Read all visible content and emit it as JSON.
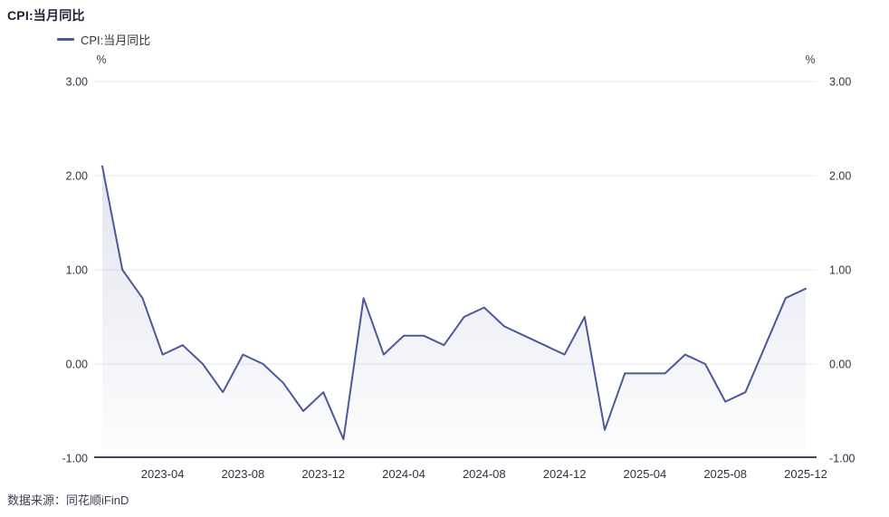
{
  "page": {
    "title": "CPI:当月同比",
    "source_note": "数据来源：同花顺iFinD"
  },
  "legend": {
    "series_label": "CPI:当月同比"
  },
  "chart_data": {
    "type": "area",
    "title": "CPI:当月同比",
    "series_name": "CPI:当月同比",
    "unit": "%",
    "x": [
      "2023-01",
      "2023-02",
      "2023-03",
      "2023-04",
      "2023-05",
      "2023-06",
      "2023-07",
      "2023-08",
      "2023-09",
      "2023-10",
      "2023-11",
      "2023-12",
      "2024-01",
      "2024-02",
      "2024-03",
      "2024-04",
      "2024-05",
      "2024-06",
      "2024-07",
      "2024-08",
      "2024-09",
      "2024-10",
      "2024-11",
      "2024-12",
      "2025-01",
      "2025-02",
      "2025-03",
      "2025-04",
      "2025-05",
      "2025-06",
      "2025-07",
      "2025-08",
      "2025-09",
      "2025-10",
      "2025-11",
      "2025-12"
    ],
    "values": [
      2.1,
      1.0,
      0.7,
      0.1,
      0.2,
      0.0,
      -0.3,
      0.1,
      0.0,
      -0.2,
      -0.5,
      -0.3,
      -0.8,
      0.7,
      0.1,
      0.3,
      0.3,
      0.2,
      0.5,
      0.6,
      0.4,
      0.3,
      0.2,
      0.1,
      0.5,
      -0.7,
      -0.1,
      -0.1,
      -0.1,
      0.1,
      0.0,
      -0.4,
      -0.3,
      0.2,
      0.7,
      0.8
    ],
    "xtick_labels": [
      "2023-04",
      "2023-08",
      "2023-12",
      "2024-04",
      "2024-08",
      "2024-12",
      "2025-04",
      "2025-08",
      "2025-12"
    ],
    "ytick_labels": [
      "3.00",
      "2.00",
      "1.00",
      "0.00",
      "-1.00"
    ],
    "ytick_values": [
      3,
      2,
      1,
      0,
      -1
    ],
    "ylim": [
      -1,
      3
    ],
    "grid": true,
    "legend_position": "top-left",
    "line_color": "#4d589a",
    "grid_color": "#e9eaef",
    "axis_color": "#3e4462",
    "text_color": "#2f3342"
  }
}
